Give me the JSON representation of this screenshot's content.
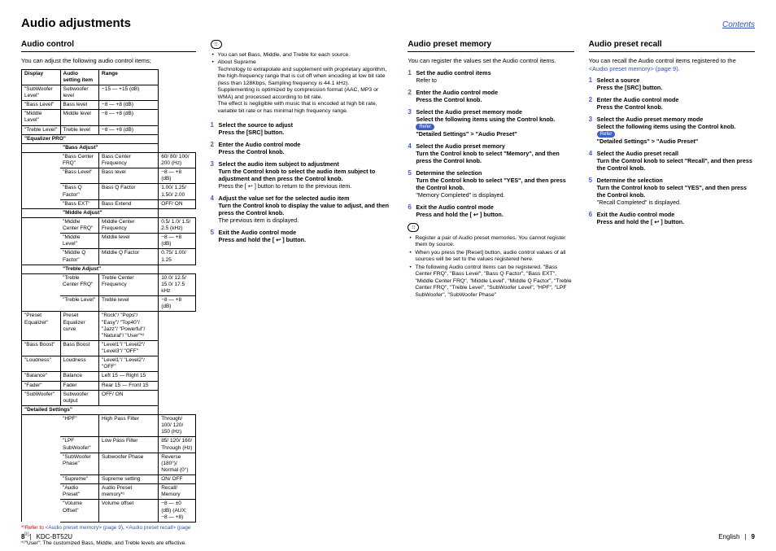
{
  "header": {
    "title": "Audio adjustments",
    "contents": "Contents"
  },
  "col1": {
    "heading": "Audio control",
    "intro": "You can adjust the following audio control items;",
    "headers": [
      "Display",
      "Audio setting item",
      "Range"
    ],
    "rows": [
      {
        "t": "d",
        "c": [
          "\"SubWoofer Level\"",
          "Subwoofer level",
          "−15 — +15 (dB)"
        ]
      },
      {
        "t": "d",
        "c": [
          "\"Bass Level\"",
          "Bass level",
          "−8 — +8 (dB)"
        ]
      },
      {
        "t": "d",
        "c": [
          "\"Middle Level\"",
          "Middle level",
          "−8 — +8 (dB)"
        ]
      },
      {
        "t": "d",
        "c": [
          "\"Treble Level\"",
          "Treble level",
          "−8 — +8 (dB)"
        ]
      },
      {
        "t": "g",
        "c": "\"Equalizer PRO\""
      },
      {
        "t": "g2",
        "c": "\"Bass Adjust\""
      },
      {
        "t": "i",
        "c": [
          "\"Bass Center FRQ\"",
          "Bass Center Frequency",
          "60/ 80/ 100/ 200 (Hz)"
        ]
      },
      {
        "t": "i",
        "c": [
          "\"Bass Level\"",
          "Bass level",
          "−8 — +8 (dB)"
        ]
      },
      {
        "t": "i",
        "c": [
          "\"Bass Q Factor\"",
          "Bass Q Factor",
          "1.00/ 1.25/ 1.50/ 2.00"
        ]
      },
      {
        "t": "i",
        "c": [
          "\"Bass EXT\"",
          "Bass Extend",
          "OFF/ ON"
        ]
      },
      {
        "t": "g2",
        "c": "\"Middle Adjust\""
      },
      {
        "t": "i",
        "c": [
          "\"Middle Center FRQ\"",
          "Middle Center Frequency",
          "0.5/ 1.0/ 1.5/ 2.5 (kHz)"
        ]
      },
      {
        "t": "i",
        "c": [
          "\"Middle Level\"",
          "Middle level",
          "−8 — +8 (dB)"
        ]
      },
      {
        "t": "i",
        "c": [
          "\"Middle Q Factor\"",
          "Middle Q Factor",
          "0.75/ 1.00/ 1.25"
        ]
      },
      {
        "t": "g2",
        "c": "\"Treble Adjust\""
      },
      {
        "t": "i",
        "c": [
          "\"Treble Center FRQ\"",
          "Treble Center Frequency",
          "10.0/ 12.5/ 15.0/ 17.5 kHz"
        ]
      },
      {
        "t": "i",
        "c": [
          "\"Treble Level\"",
          "Treble level",
          "−8 — +8 (dB)"
        ]
      },
      {
        "t": "d",
        "c": [
          "\"Preset Equalizer\"",
          "Preset Equalizer curve",
          "\"Rock\"/ \"Pops\"/ \"Easy\"/ \"Top40\"/ \"Jazz\"/ \"Powerful\"/ \"Natural\"/ \"User\"*²"
        ]
      },
      {
        "t": "d",
        "c": [
          "\"Bass Boost\"",
          "Bass Boost",
          "\"Level1\"/ \"Level2\"/ \"Level3\"/ \"OFF\""
        ]
      },
      {
        "t": "d",
        "c": [
          "\"Loudness\"",
          "Loudness",
          "\"Level1\"/ \"Level2\"/ \"OFF\""
        ]
      },
      {
        "t": "d",
        "c": [
          "\"Balance\"",
          "Balance",
          "Left 15 — Right 15"
        ]
      },
      {
        "t": "d",
        "c": [
          "\"Fader\"",
          "Fader",
          "Rear 15 — Front 15"
        ]
      },
      {
        "t": "d",
        "c": [
          "\"SubWoofer\"",
          "Subwoofer output",
          "OFF/ ON"
        ]
      },
      {
        "t": "g",
        "c": "\"Detailed Settings\""
      },
      {
        "t": "i",
        "c": [
          "\"HPF\"",
          "High Pass Filter",
          "Through/ 100/ 120/ 150 (Hz)"
        ]
      },
      {
        "t": "i",
        "c": [
          "\"LPF SubWoofer\"",
          "Low Pass Filter",
          "85/ 120/ 160/ Through (Hz)"
        ]
      },
      {
        "t": "i",
        "c": [
          "\"SubWoofer Phase\"",
          "Subwoofer Phase",
          "Reverse (180°)/ Normal (0°)"
        ]
      },
      {
        "t": "i",
        "c": [
          "\"Supreme\"",
          "Supreme setting",
          "ON/ OFF"
        ]
      },
      {
        "t": "i",
        "c": [
          "\"Audio Preset\"",
          "Audio Preset memory*¹",
          "Recall/ Memory"
        ]
      },
      {
        "t": "i",
        "c": [
          "\"Volume Offset\"",
          "Volume offset",
          "−8 — ±0 (dB) (AUX: −8 — +8)"
        ]
      }
    ],
    "fn1a": "*¹Refer to ",
    "fn1b": "<Audio preset memory> (page 9)",
    "fn1c": ", ",
    "fn1d": "<Audio preset recall> (page 9)",
    "fn1e": ".",
    "fn2a": "*²",
    "fn2b": "\"User\": The customized Bass, Middle, and Treble levels are effective."
  },
  "col2": {
    "noteIcon": "⁝⁝",
    "bullets": [
      "You can set Bass, Middle, and Treble for each source.",
      "About Supreme\nTechnology to extrapolate and supplement with proprietary algorithm, the high-frequency range that is cut off when encoding at low bit rate (less than 128Kbps, Sampling frequency is 44.1 kHz).\nSupplementing is optimized by compression format (AAC, MP3 or WMA) and processed according to bit rate.\nThe effect is negligible with music that is encoded at high bit rate, variable bit rate or has minimal high frequency range."
    ],
    "steps": [
      {
        "title": "Select the source to adjust",
        "body": "Press the [SRC] button."
      },
      {
        "title": "Enter the Audio control mode",
        "body": "Press the Control knob."
      },
      {
        "title": "Select the audio item subject to adjustment",
        "body": "Turn the Control knob to select the audio item subject to adjustment and then press the Control knob.",
        "extra": "Press the [ ↩ ] button to return to the previous item."
      },
      {
        "title": "Adjust the value set for the selected audio item",
        "body": "Turn the Control knob to display the value to adjust, and then press the Control knob.",
        "extra2": "The previous item is displayed."
      },
      {
        "title": "Exit the Audio control mode",
        "body": "Press and hold the [ ↩ ] button."
      }
    ]
  },
  "col3": {
    "heading": "Audio preset memory",
    "intro": "You can register the values set the Audio control items.",
    "steps": [
      {
        "title": "Set the audio control items",
        "link": "Refer to <Audio control> (page 8)."
      },
      {
        "title": "Enter the Audio control mode",
        "body": "Press the Control knob."
      },
      {
        "title": "Select the Audio preset memory mode",
        "body": "Select the following items using the Control knob.",
        "refer": true,
        "path": "\"Detailed Settings\" > \"Audio Preset\""
      },
      {
        "title": "Select the Audio preset memory",
        "body": "Turn the Control knob to select \"Memory\", and then press the Control knob."
      },
      {
        "title": "Determine the selection",
        "body": "Turn the Control knob to select \"YES\", and then press the Control knob.",
        "extra": "\"Memory Completed\" is displayed."
      },
      {
        "title": "Exit the Audio control mode",
        "body": "Press and hold the [ ↩ ] button."
      }
    ],
    "notes": [
      "Register a pair of Audio preset memories. You cannot register them by source.",
      "When you press the [Reset] button, audio control values of all sources will be set to the values registered here.",
      "The following Audio control items can be registered. \"Bass Center FRQ\", \"Bass Level\", \"Bass Q Factor\", \"Bass EXT\", \"Middle Center FRQ\", \"Middle Level\", \"Middle Q Factor\", \"Treble Center FRQ\", \"Treble Level\", \"SubWoofer Level\", \"HPF\", \"LPF SubWoofer\", \"SubWoofer Phase\""
    ]
  },
  "col4": {
    "heading": "Audio preset recall",
    "intro1": "You can recall the Audio control items registered to the ",
    "introLink": "<Audio preset memory> (page 9)",
    "intro2": ".",
    "steps": [
      {
        "title": "Select a source",
        "body": "Press the [SRC] button."
      },
      {
        "title": "Enter the Audio control mode",
        "body": "Press the Control knob."
      },
      {
        "title": "Select the Audio preset memory mode",
        "body": "Select the following items using the Control knob.",
        "refer": true,
        "path": "\"Detailed Settings\" > \"Audio Preset\""
      },
      {
        "title": "Select the Audio preset recall",
        "body": "Turn the Control knob to select \"Recall\", and then press the Control knob."
      },
      {
        "title": "Determine the selection",
        "body": "Turn the Control knob to select \"YES\", and then press the Control knob.",
        "extra": "\"Recall Completed\" is displayed."
      },
      {
        "title": "Exit the Audio control mode",
        "body": "Press and hold the [ ↩ ] button."
      }
    ]
  },
  "footer": {
    "pageLeft": "8",
    "model": "KDC-BT52U",
    "lang": "English",
    "pageRight": "9"
  }
}
